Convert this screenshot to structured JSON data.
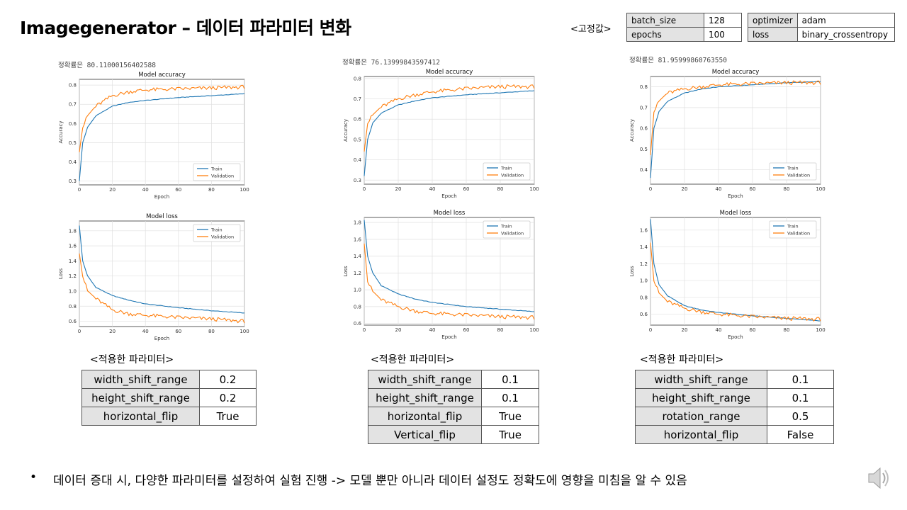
{
  "title": "Imagegenerator – 데이터 파라미터 변화",
  "fixed_label": "<고정값>",
  "fixed_params": [
    {
      "key": "batch_size",
      "value": "128"
    },
    {
      "key": "epochs",
      "value": "100"
    },
    {
      "key": "optimizer",
      "value": "adam"
    },
    {
      "key": "loss",
      "value": "binary_crossentropy"
    }
  ],
  "experiments": [
    {
      "accuracy_text": "정확률은 80.11000156402588",
      "param_label": "<적용한 파라미터>",
      "params": [
        {
          "key": "width_shift_range",
          "value": "0.2"
        },
        {
          "key": "height_shift_range",
          "value": "0.2"
        },
        {
          "key": "horizontal_flip",
          "value": "True"
        }
      ]
    },
    {
      "accuracy_text": "정확률은 76.13999843597412",
      "param_label": "<적용한 파라미터>",
      "params": [
        {
          "key": "width_shift_range",
          "value": "0.1"
        },
        {
          "key": "height_shift_range",
          "value": "0.1"
        },
        {
          "key": "horizontal_flip",
          "value": "True"
        },
        {
          "key": "Vertical_flip",
          "value": "True"
        }
      ]
    },
    {
      "accuracy_text": "정확률은 81.95999860763550",
      "param_label": "<적용한 파라미터>",
      "params": [
        {
          "key": "width_shift_range",
          "value": "0.1"
        },
        {
          "key": "height_shift_range",
          "value": "0.1"
        },
        {
          "key": "rotation_range",
          "value": "0.5"
        },
        {
          "key": "horizontal_flip",
          "value": "False"
        }
      ]
    }
  ],
  "chart_data": [
    {
      "type": "line",
      "title": "Model accuracy",
      "xlabel": "Epoch",
      "ylabel": "Accuracy",
      "xlim": [
        0,
        100
      ],
      "xticks": [
        0,
        20,
        40,
        60,
        80,
        100
      ],
      "ylim": [
        0.28,
        0.83
      ],
      "yticks": [
        0.3,
        0.4,
        0.5,
        0.6,
        0.7,
        0.8
      ],
      "ytick_labels": [
        "0.3",
        "0.4",
        "0.5",
        "0.6",
        "0.7",
        "0.8"
      ],
      "legend": "lower-right",
      "series": [
        {
          "name": "Train",
          "color": "#1f77b4",
          "x": [
            0,
            2,
            5,
            10,
            20,
            30,
            40,
            60,
            80,
            100
          ],
          "values": [
            0.3,
            0.5,
            0.58,
            0.64,
            0.69,
            0.71,
            0.72,
            0.735,
            0.745,
            0.755
          ]
        },
        {
          "name": "Validation",
          "color": "#ff7f0e",
          "x": [
            0,
            2,
            5,
            10,
            20,
            30,
            40,
            60,
            80,
            100
          ],
          "values": [
            0.45,
            0.58,
            0.64,
            0.69,
            0.745,
            0.765,
            0.775,
            0.78,
            0.785,
            0.79
          ]
        }
      ]
    },
    {
      "type": "line",
      "title": "Model loss",
      "xlabel": "Epoch",
      "ylabel": "Loss",
      "xlim": [
        0,
        100
      ],
      "xticks": [
        0,
        20,
        40,
        60,
        80,
        100
      ],
      "ylim": [
        0.53,
        1.93
      ],
      "yticks": [
        0.6,
        0.8,
        1.0,
        1.2,
        1.4,
        1.6,
        1.8
      ],
      "ytick_labels": [
        "0.6",
        "0.8",
        "1.0",
        "1.2",
        "1.4",
        "1.6",
        "1.8"
      ],
      "legend": "top-right",
      "series": [
        {
          "name": "Train",
          "color": "#1f77b4",
          "x": [
            0,
            2,
            5,
            10,
            20,
            30,
            40,
            60,
            80,
            100
          ],
          "values": [
            1.87,
            1.4,
            1.2,
            1.05,
            0.94,
            0.88,
            0.83,
            0.78,
            0.74,
            0.71
          ]
        },
        {
          "name": "Validation",
          "color": "#ff7f0e",
          "x": [
            0,
            2,
            5,
            10,
            20,
            30,
            40,
            60,
            80,
            100
          ],
          "values": [
            1.5,
            1.2,
            1.0,
            0.9,
            0.75,
            0.7,
            0.68,
            0.65,
            0.63,
            0.6
          ]
        }
      ]
    },
    {
      "type": "line",
      "title": "Model accuracy",
      "xlabel": "Epoch",
      "ylabel": "Accuracy",
      "xlim": [
        0,
        100
      ],
      "xticks": [
        0,
        20,
        40,
        60,
        80,
        100
      ],
      "ylim": [
        0.28,
        0.81
      ],
      "yticks": [
        0.3,
        0.4,
        0.5,
        0.6,
        0.7,
        0.8
      ],
      "ytick_labels": [
        "0.3",
        "0.4",
        "0.5",
        "0.6",
        "0.7",
        "0.8"
      ],
      "legend": "lower-right",
      "series": [
        {
          "name": "Train",
          "color": "#1f77b4",
          "x": [
            0,
            2,
            5,
            10,
            20,
            30,
            40,
            60,
            80,
            100
          ],
          "values": [
            0.32,
            0.5,
            0.58,
            0.63,
            0.67,
            0.69,
            0.705,
            0.72,
            0.73,
            0.74
          ]
        },
        {
          "name": "Validation",
          "color": "#ff7f0e",
          "x": [
            0,
            2,
            5,
            10,
            20,
            30,
            40,
            60,
            80,
            100
          ],
          "values": [
            0.44,
            0.58,
            0.62,
            0.66,
            0.7,
            0.72,
            0.735,
            0.75,
            0.76,
            0.76
          ]
        }
      ]
    },
    {
      "type": "line",
      "title": "Model loss",
      "xlabel": "Epoch",
      "ylabel": "Loss",
      "xlim": [
        0,
        100
      ],
      "xticks": [
        0,
        20,
        40,
        60,
        80,
        100
      ],
      "ylim": [
        0.58,
        1.86
      ],
      "yticks": [
        0.6,
        0.8,
        1.0,
        1.2,
        1.4,
        1.6,
        1.8
      ],
      "ytick_labels": [
        "0.6",
        "0.8",
        "1.0",
        "1.2",
        "1.4",
        "1.6",
        "1.8"
      ],
      "legend": "top-right",
      "series": [
        {
          "name": "Train",
          "color": "#1f77b4",
          "x": [
            0,
            2,
            5,
            10,
            20,
            30,
            40,
            60,
            80,
            100
          ],
          "values": [
            1.83,
            1.4,
            1.2,
            1.05,
            0.95,
            0.89,
            0.85,
            0.8,
            0.77,
            0.74
          ]
        },
        {
          "name": "Validation",
          "color": "#ff7f0e",
          "x": [
            0,
            2,
            5,
            10,
            20,
            30,
            40,
            60,
            80,
            100
          ],
          "values": [
            1.55,
            1.1,
            0.98,
            0.88,
            0.8,
            0.75,
            0.72,
            0.7,
            0.68,
            0.67
          ]
        }
      ]
    },
    {
      "type": "line",
      "title": "Model accuracy",
      "xlabel": "Epoch",
      "ylabel": "Accuracy",
      "xlim": [
        0,
        100
      ],
      "xticks": [
        0,
        20,
        40,
        60,
        80,
        100
      ],
      "ylim": [
        0.33,
        0.85
      ],
      "yticks": [
        0.4,
        0.5,
        0.6,
        0.7,
        0.8
      ],
      "ytick_labels": [
        "0.4",
        "0.5",
        "0.6",
        "0.7",
        "0.8"
      ],
      "legend": "lower-right",
      "series": [
        {
          "name": "Train",
          "color": "#1f77b4",
          "x": [
            0,
            2,
            5,
            10,
            20,
            30,
            40,
            60,
            80,
            100
          ],
          "values": [
            0.36,
            0.6,
            0.68,
            0.73,
            0.77,
            0.79,
            0.8,
            0.81,
            0.82,
            0.825
          ]
        },
        {
          "name": "Validation",
          "color": "#ff7f0e",
          "x": [
            0,
            2,
            5,
            10,
            20,
            30,
            40,
            60,
            80,
            100
          ],
          "values": [
            0.47,
            0.68,
            0.73,
            0.77,
            0.79,
            0.8,
            0.81,
            0.815,
            0.82,
            0.82
          ]
        }
      ]
    },
    {
      "type": "line",
      "title": "Model loss",
      "xlabel": "Epoch",
      "ylabel": "Loss",
      "xlim": [
        0,
        100
      ],
      "xticks": [
        0,
        20,
        40,
        60,
        80,
        100
      ],
      "ylim": [
        0.47,
        1.75
      ],
      "yticks": [
        0.6,
        0.8,
        1.0,
        1.2,
        1.4,
        1.6
      ],
      "ytick_labels": [
        "0.6",
        "0.8",
        "1.0",
        "1.2",
        "1.4",
        "1.6"
      ],
      "legend": "top-right",
      "series": [
        {
          "name": "Train",
          "color": "#1f77b4",
          "x": [
            0,
            2,
            5,
            10,
            20,
            30,
            40,
            60,
            80,
            100
          ],
          "values": [
            1.73,
            1.2,
            0.95,
            0.82,
            0.7,
            0.65,
            0.62,
            0.58,
            0.55,
            0.52
          ]
        },
        {
          "name": "Validation",
          "color": "#ff7f0e",
          "x": [
            0,
            2,
            5,
            10,
            20,
            30,
            40,
            60,
            80,
            100
          ],
          "values": [
            1.45,
            1.0,
            0.85,
            0.75,
            0.67,
            0.63,
            0.6,
            0.57,
            0.55,
            0.54
          ]
        }
      ]
    }
  ],
  "conclusion": "데이터 증대 시, 다양한 파라미터를 설정하여 실험 진행 -> 모델 뿐만 아니라 데이터 설정도 정확도에 영향을 미침을 알 수 있음",
  "icons": {
    "bullet": "bullet-dot",
    "speaker": "speaker-icon"
  }
}
